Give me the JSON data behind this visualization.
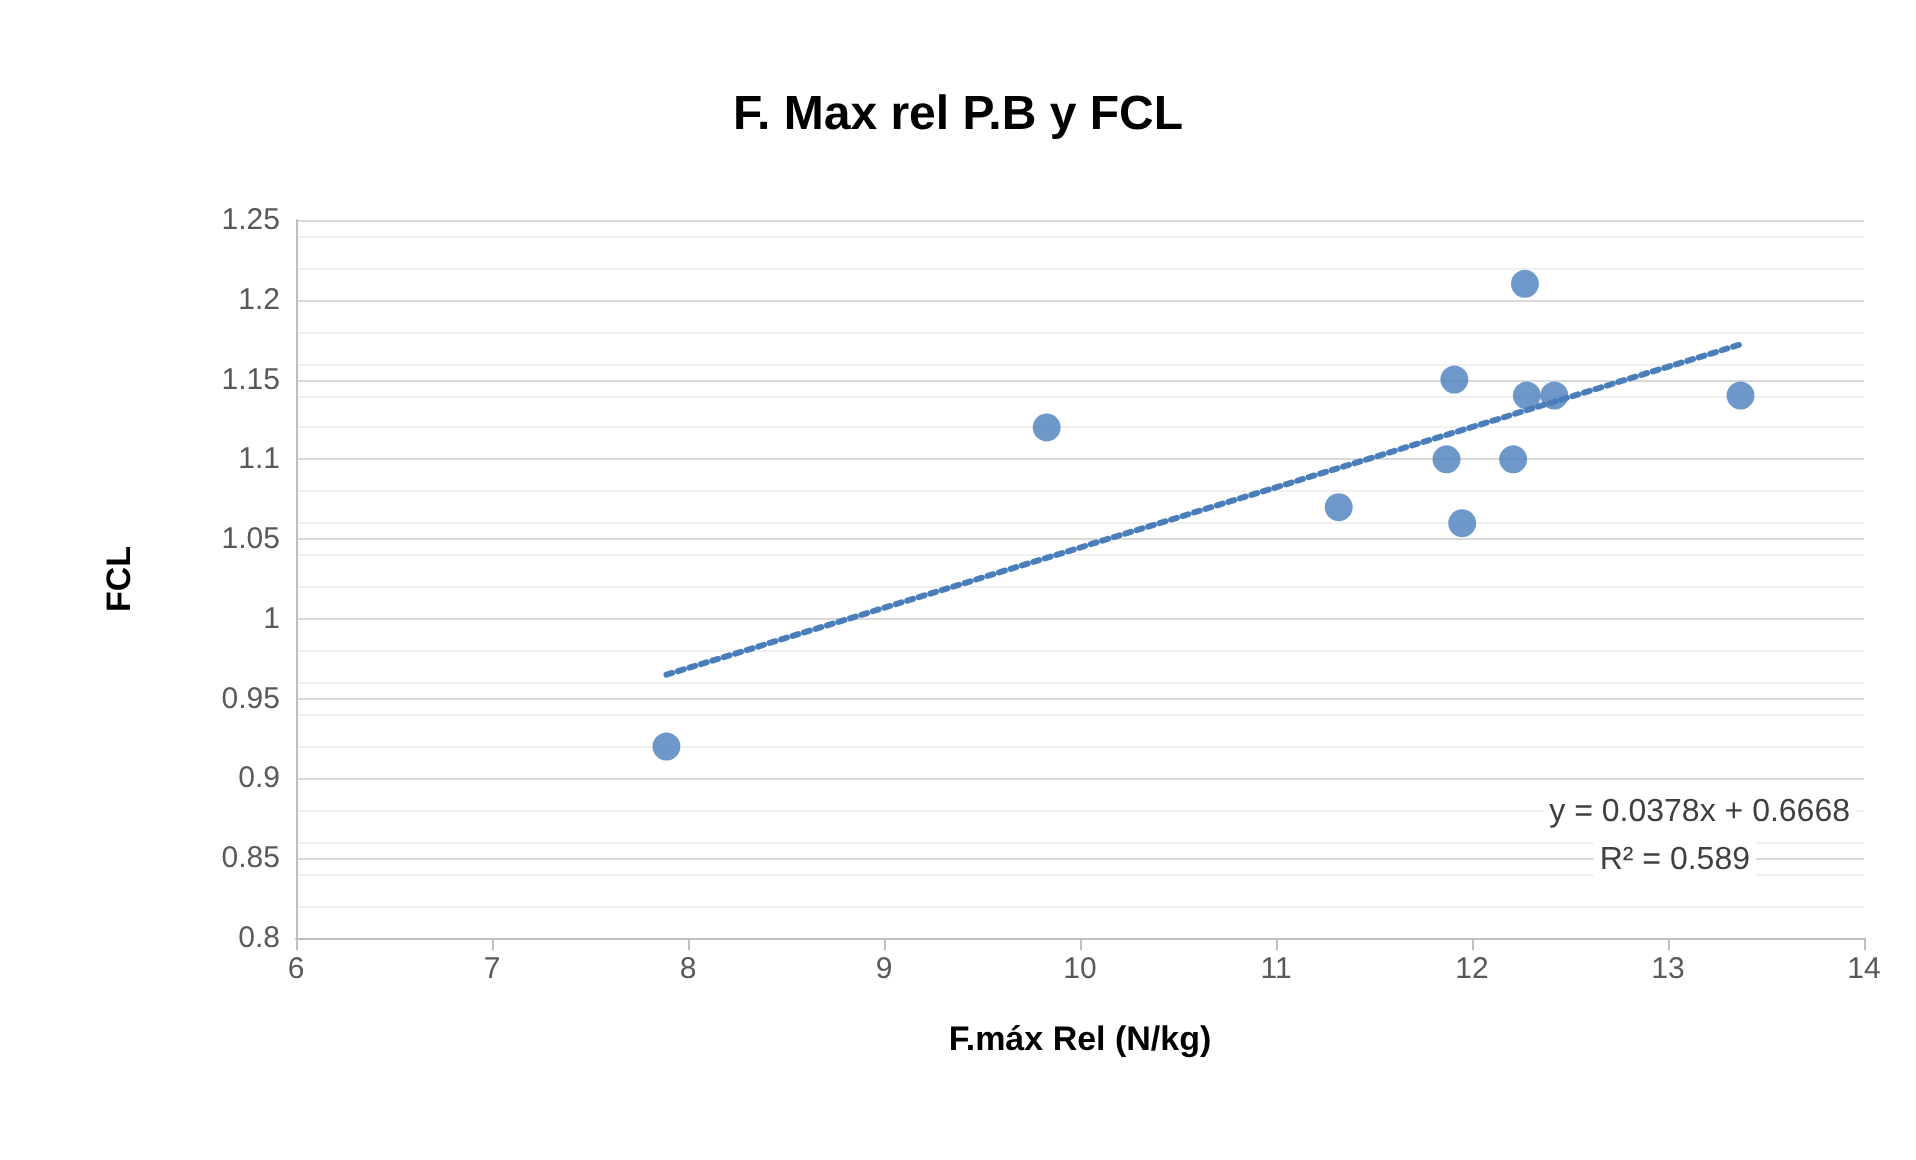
{
  "chart_data": {
    "type": "scatter",
    "title": "F. Max rel P.B y FCL",
    "xlabel": "F.máx Rel (N/kg)",
    "ylabel": "FCL",
    "series": [
      {
        "color": "#4a7ebb",
        "x": [
          7.89,
          9.83,
          11.32,
          11.87,
          11.91,
          11.95,
          12.21,
          12.27,
          12.28,
          12.42,
          13.37
        ],
        "values": [
          0.92,
          1.12,
          1.07,
          1.1,
          1.15,
          1.06,
          1.1,
          1.21,
          1.14,
          1.14,
          1.14
        ]
      },
      {
        "type": "line",
        "color": "#4a7ebb",
        "line_style": "dotted",
        "marker": "none",
        "x": [
          7.89,
          13.37
        ],
        "values": [
          0.965,
          1.172
        ]
      }
    ],
    "xlim": [
      6,
      14
    ],
    "xticks": [
      6,
      7,
      8,
      9,
      10,
      11,
      12,
      13,
      14
    ],
    "ylim": [
      0.8,
      1.25
    ],
    "yticks": [
      0.8,
      0.85,
      0.9,
      0.95,
      1,
      1.05,
      1.1,
      1.15,
      1.2,
      1.25
    ],
    "grid": "y",
    "marker": "circle",
    "annotations": [
      "y = 0.0378x + 0.6668",
      "R² = 0.589"
    ]
  }
}
